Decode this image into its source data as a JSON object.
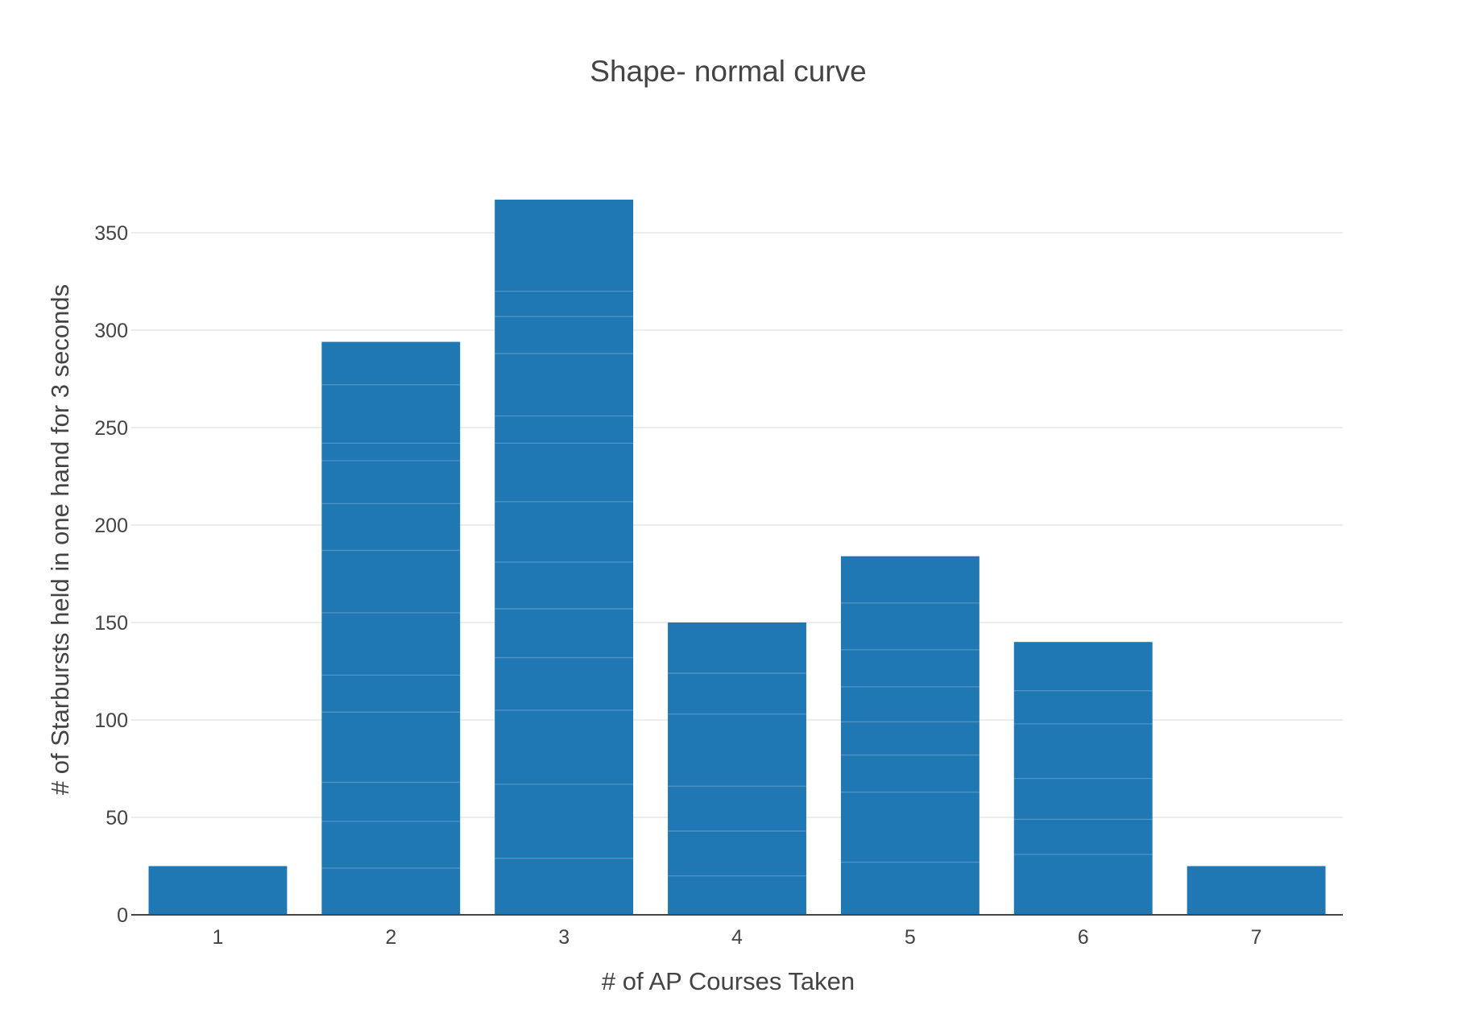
{
  "chart_data": {
    "type": "bar",
    "title": "Shape- normal curve",
    "xlabel": "# of AP Courses Taken",
    "ylabel": "# of Starbursts held in one hand for 3 seconds",
    "categories": [
      "1",
      "2",
      "3",
      "4",
      "5",
      "6",
      "7"
    ],
    "values": [
      25,
      294,
      367,
      150,
      184,
      140,
      25
    ],
    "stack_boundaries": [
      [],
      [
        24,
        48,
        68,
        104,
        123,
        155,
        187,
        211,
        233,
        242,
        272
      ],
      [
        29,
        67,
        105,
        132,
        157,
        181,
        212,
        242,
        256,
        288,
        307,
        320
      ],
      [
        20,
        43,
        66,
        103,
        124
      ],
      [
        27,
        63,
        82,
        99,
        117,
        136,
        160
      ],
      [
        31,
        49,
        70,
        98,
        115
      ],
      []
    ],
    "ylim": [
      0,
      380
    ],
    "yticks": [
      0,
      50,
      100,
      150,
      200,
      250,
      300,
      350
    ],
    "grid": true,
    "colors": {
      "bar": "#1f77b4",
      "grid": "#e6e6e6",
      "axis": "#444444",
      "text": "#444444"
    }
  }
}
